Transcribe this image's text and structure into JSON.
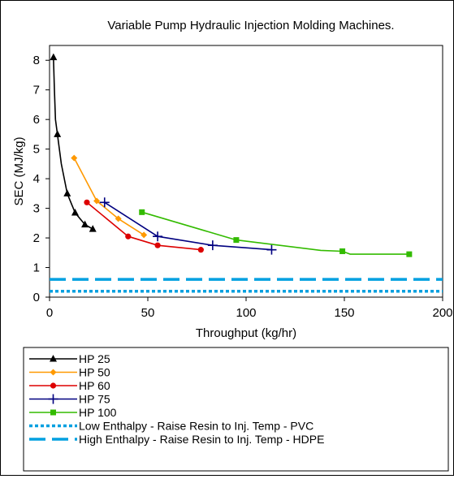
{
  "chart_data": {
    "type": "line",
    "title": "Variable Pump Hydraulic Injection Molding Machines.",
    "xlabel": "Throughput (kg/hr)",
    "ylabel": "SEC (MJ/kg)",
    "xlim": [
      0,
      200
    ],
    "ylim": [
      0,
      8.5
    ],
    "x_ticks": [
      "0",
      "50",
      "100",
      "150",
      "200"
    ],
    "y_ticks": [
      "0",
      "1",
      "2",
      "3",
      "4",
      "5",
      "6",
      "7",
      "8"
    ],
    "grid": false,
    "legend_position": "bottom",
    "series": [
      {
        "name": "HP 25",
        "color": "#000000",
        "marker": "triangle",
        "line_style": "solid",
        "x": [
          2,
          2.5,
          3,
          4,
          6,
          9,
          13,
          18,
          22
        ],
        "y": [
          8.1,
          7.0,
          6.0,
          5.5,
          4.5,
          3.5,
          2.85,
          2.45,
          2.3
        ],
        "marked_indices": [
          0,
          3,
          5,
          6,
          7,
          8
        ]
      },
      {
        "name": "HP 50",
        "color": "#ff9900",
        "marker": "diamond",
        "line_style": "solid",
        "x": [
          12.5,
          24,
          35,
          48
        ],
        "y": [
          4.7,
          3.25,
          2.65,
          2.1
        ],
        "marked_indices": [
          0,
          1,
          2,
          3
        ]
      },
      {
        "name": "HP 60",
        "color": "#dd0000",
        "marker": "circle",
        "line_style": "solid",
        "x": [
          19,
          40,
          55,
          77
        ],
        "y": [
          3.2,
          2.05,
          1.75,
          1.6
        ],
        "marked_indices": [
          0,
          1,
          2,
          3
        ]
      },
      {
        "name": "HP 75",
        "color": "#000080",
        "marker": "plus",
        "line_style": "solid",
        "x": [
          28,
          55,
          83,
          113
        ],
        "y": [
          3.2,
          2.05,
          1.75,
          1.6
        ],
        "marked_indices": [
          0,
          1,
          2,
          3
        ]
      },
      {
        "name": "HP 100",
        "color": "#33bb00",
        "marker": "square",
        "line_style": "solid",
        "x": [
          47,
          95,
          138,
          149,
          153,
          165,
          183
        ],
        "y": [
          2.87,
          1.93,
          1.58,
          1.55,
          1.45,
          1.45,
          1.45
        ],
        "marked_indices": [
          0,
          1,
          3,
          6
        ]
      },
      {
        "name": "Low Enthalpy -  Raise Resin to Inj. Temp - PVC",
        "color": "#00a0e0",
        "marker": "none",
        "line_style": "dotted",
        "x": [
          0,
          200
        ],
        "y": [
          0.2,
          0.2
        ],
        "marked_indices": []
      },
      {
        "name": "High Enthalpy - Raise Resin to Inj. Temp - HDPE",
        "color": "#00a0e0",
        "marker": "none",
        "line_style": "dashed",
        "x": [
          0,
          200
        ],
        "y": [
          0.6,
          0.6
        ],
        "marked_indices": []
      }
    ]
  }
}
